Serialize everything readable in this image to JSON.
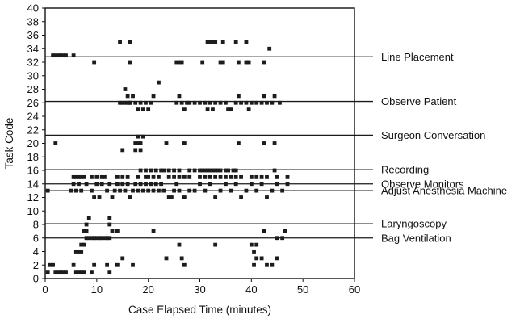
{
  "chart_data": {
    "type": "scatter",
    "xlabel": "Case Elapsed Time (minutes)",
    "ylabel": "Task Code",
    "xlim": [
      0,
      60
    ],
    "ylim": [
      0,
      40
    ],
    "xticks": [
      0,
      10,
      20,
      30,
      40,
      50,
      60
    ],
    "yticks": [
      0,
      2,
      4,
      6,
      8,
      10,
      12,
      14,
      16,
      18,
      20,
      22,
      24,
      26,
      28,
      30,
      32,
      34,
      36,
      38,
      40
    ],
    "grid": false,
    "reference_lines": [
      {
        "label": "Line Placement",
        "y": 32.8
      },
      {
        "label": "Observe Patient",
        "y": 26.2
      },
      {
        "label": "Surgeon Conversation",
        "y": 21.2
      },
      {
        "label": "Recording",
        "y": 16.1
      },
      {
        "label": "Observe Monitors",
        "y": 14.0
      },
      {
        "label": "Adjust Anesthesia Machine",
        "y": 13.0
      },
      {
        "label": "Laryngoscopy",
        "y": 8.1
      },
      {
        "label": "Bag Ventilation",
        "y": 6.0
      }
    ],
    "points": [
      [
        0.5,
        1
      ],
      [
        1,
        2
      ],
      [
        1.5,
        2
      ],
      [
        2,
        1
      ],
      [
        2.5,
        1
      ],
      [
        3,
        1
      ],
      [
        3.5,
        1
      ],
      [
        4,
        1
      ],
      [
        5.5,
        2
      ],
      [
        6,
        1
      ],
      [
        6.5,
        1
      ],
      [
        7,
        1
      ],
      [
        7.5,
        1
      ],
      [
        9,
        1
      ],
      [
        9.5,
        2
      ],
      [
        12,
        2
      ],
      [
        12.5,
        1
      ],
      [
        14,
        2
      ],
      [
        15,
        3
      ],
      [
        17,
        2
      ],
      [
        23.5,
        3
      ],
      [
        26,
        5
      ],
      [
        26.5,
        3
      ],
      [
        27,
        2
      ],
      [
        40.5,
        2
      ],
      [
        41,
        3
      ],
      [
        42,
        3
      ],
      [
        43,
        2
      ],
      [
        44,
        2
      ],
      [
        45,
        3
      ],
      [
        6,
        4
      ],
      [
        6.5,
        4
      ],
      [
        7,
        4
      ],
      [
        7,
        5
      ],
      [
        7.5,
        5
      ],
      [
        8,
        6
      ],
      [
        8.5,
        6
      ],
      [
        9,
        6
      ],
      [
        9.5,
        6
      ],
      [
        10,
        6
      ],
      [
        10.5,
        6
      ],
      [
        11,
        6
      ],
      [
        11.5,
        6
      ],
      [
        12,
        6
      ],
      [
        12.5,
        6
      ],
      [
        7.5,
        7
      ],
      [
        8,
        8
      ],
      [
        8.5,
        9
      ],
      [
        8,
        7
      ],
      [
        13,
        7
      ],
      [
        14,
        7
      ],
      [
        12.5,
        9
      ],
      [
        12.5,
        8
      ],
      [
        21,
        7
      ],
      [
        40,
        5
      ],
      [
        40.5,
        4
      ],
      [
        41,
        5
      ],
      [
        42.5,
        7
      ],
      [
        45,
        6
      ],
      [
        46,
        6
      ],
      [
        46.5,
        7
      ],
      [
        33,
        5
      ],
      [
        0.5,
        13
      ],
      [
        5,
        13
      ],
      [
        5.5,
        14
      ],
      [
        6,
        13
      ],
      [
        6.5,
        14
      ],
      [
        7,
        13
      ],
      [
        8,
        14
      ],
      [
        9,
        13
      ],
      [
        9.5,
        12
      ],
      [
        10,
        14
      ],
      [
        10.5,
        12
      ],
      [
        11,
        14
      ],
      [
        12,
        13
      ],
      [
        12.5,
        14
      ],
      [
        13,
        12
      ],
      [
        13.5,
        13
      ],
      [
        14,
        14
      ],
      [
        14.5,
        13
      ],
      [
        15,
        14
      ],
      [
        15.5,
        13
      ],
      [
        16,
        14
      ],
      [
        16.5,
        12
      ],
      [
        17,
        13
      ],
      [
        17.5,
        14
      ],
      [
        18,
        13
      ],
      [
        18.5,
        14
      ],
      [
        19,
        13
      ],
      [
        19.5,
        14
      ],
      [
        20,
        13
      ],
      [
        20.5,
        14
      ],
      [
        21,
        13
      ],
      [
        21.5,
        14
      ],
      [
        22,
        13
      ],
      [
        22.5,
        14
      ],
      [
        23,
        13
      ],
      [
        24,
        12
      ],
      [
        24.5,
        12
      ],
      [
        25,
        13
      ],
      [
        25.5,
        14
      ],
      [
        26,
        13
      ],
      [
        27,
        12
      ],
      [
        28,
        13
      ],
      [
        29,
        13
      ],
      [
        30,
        14
      ],
      [
        31,
        13
      ],
      [
        32,
        14
      ],
      [
        33,
        12
      ],
      [
        34,
        13
      ],
      [
        35,
        14
      ],
      [
        36,
        13
      ],
      [
        37,
        14
      ],
      [
        38,
        12
      ],
      [
        39,
        13
      ],
      [
        40,
        14
      ],
      [
        41,
        13
      ],
      [
        42,
        14
      ],
      [
        43,
        12
      ],
      [
        44,
        13
      ],
      [
        45,
        14
      ],
      [
        46,
        13
      ],
      [
        47,
        14
      ],
      [
        5.5,
        15
      ],
      [
        6,
        15
      ],
      [
        6.5,
        15
      ],
      [
        7,
        15
      ],
      [
        7.5,
        15
      ],
      [
        9,
        15
      ],
      [
        10,
        15
      ],
      [
        11,
        15
      ],
      [
        11.5,
        15
      ],
      [
        14,
        15
      ],
      [
        15,
        15
      ],
      [
        16,
        15
      ],
      [
        18,
        15
      ],
      [
        19.5,
        15
      ],
      [
        20,
        15
      ],
      [
        21,
        15
      ],
      [
        22,
        15
      ],
      [
        24,
        15
      ],
      [
        25,
        15
      ],
      [
        26,
        15
      ],
      [
        27,
        15
      ],
      [
        28,
        15
      ],
      [
        30,
        15
      ],
      [
        31,
        15
      ],
      [
        32,
        15
      ],
      [
        33,
        15
      ],
      [
        34,
        15
      ],
      [
        35,
        15
      ],
      [
        36,
        15
      ],
      [
        37,
        15
      ],
      [
        38,
        15
      ],
      [
        40,
        15
      ],
      [
        41,
        15
      ],
      [
        42,
        15
      ],
      [
        43,
        15
      ],
      [
        45,
        15
      ],
      [
        47,
        15
      ],
      [
        18.5,
        16
      ],
      [
        19.5,
        16
      ],
      [
        20.5,
        16
      ],
      [
        21.5,
        16
      ],
      [
        22.5,
        16
      ],
      [
        23,
        16
      ],
      [
        24,
        16
      ],
      [
        25,
        16
      ],
      [
        26,
        16
      ],
      [
        28,
        16
      ],
      [
        29,
        16
      ],
      [
        30,
        16
      ],
      [
        30.5,
        16
      ],
      [
        31,
        16
      ],
      [
        31.5,
        16
      ],
      [
        32,
        16
      ],
      [
        32.5,
        16
      ],
      [
        33,
        16
      ],
      [
        33.5,
        16
      ],
      [
        34,
        16
      ],
      [
        35,
        16
      ],
      [
        35.5,
        16
      ],
      [
        36.5,
        16
      ],
      [
        37,
        16
      ],
      [
        44.5,
        16
      ],
      [
        15,
        19
      ],
      [
        17.5,
        19
      ],
      [
        18.5,
        19
      ],
      [
        17.5,
        20
      ],
      [
        18,
        20
      ],
      [
        18.5,
        20
      ],
      [
        18,
        21
      ],
      [
        19,
        21
      ],
      [
        2,
        20
      ],
      [
        23.5,
        20
      ],
      [
        27,
        20
      ],
      [
        37.5,
        20
      ],
      [
        42.5,
        20
      ],
      [
        44.5,
        20
      ],
      [
        14.5,
        26
      ],
      [
        15,
        26
      ],
      [
        15.5,
        26
      ],
      [
        16,
        26
      ],
      [
        16.5,
        26
      ],
      [
        17,
        27
      ],
      [
        17.5,
        26
      ],
      [
        18,
        25
      ],
      [
        18.5,
        26
      ],
      [
        19,
        25
      ],
      [
        19.5,
        26
      ],
      [
        20,
        25
      ],
      [
        20.5,
        26
      ],
      [
        21,
        27
      ],
      [
        15.5,
        28
      ],
      [
        16,
        27
      ],
      [
        16.5,
        26
      ],
      [
        22,
        29
      ],
      [
        25.5,
        26
      ],
      [
        26,
        27
      ],
      [
        26.5,
        26
      ],
      [
        27,
        25
      ],
      [
        27.5,
        26
      ],
      [
        28,
        26
      ],
      [
        29,
        26
      ],
      [
        30,
        26
      ],
      [
        31,
        26
      ],
      [
        31.5,
        25
      ],
      [
        32,
        26
      ],
      [
        32.5,
        25
      ],
      [
        33,
        26
      ],
      [
        34,
        26
      ],
      [
        35,
        26
      ],
      [
        35.5,
        25
      ],
      [
        36,
        25
      ],
      [
        37,
        26
      ],
      [
        37.5,
        27
      ],
      [
        38,
        26
      ],
      [
        39,
        26
      ],
      [
        39.5,
        25
      ],
      [
        40,
        26
      ],
      [
        41,
        26
      ],
      [
        42,
        26
      ],
      [
        42.5,
        27
      ],
      [
        43,
        26
      ],
      [
        44,
        26
      ],
      [
        44.5,
        27
      ],
      [
        45.5,
        26
      ],
      [
        1.5,
        33
      ],
      [
        2,
        33
      ],
      [
        2.5,
        33
      ],
      [
        3,
        33
      ],
      [
        3.5,
        33
      ],
      [
        4,
        33
      ],
      [
        5.5,
        33
      ],
      [
        9.5,
        32
      ],
      [
        16.5,
        32
      ],
      [
        25.5,
        32
      ],
      [
        26,
        32
      ],
      [
        26.5,
        32
      ],
      [
        30.5,
        32
      ],
      [
        34,
        32
      ],
      [
        34.5,
        32
      ],
      [
        37.5,
        32
      ],
      [
        39,
        32
      ],
      [
        39.5,
        32
      ],
      [
        42.5,
        32
      ],
      [
        43.5,
        34
      ],
      [
        14.5,
        35
      ],
      [
        16.5,
        35
      ],
      [
        31.5,
        35
      ],
      [
        32,
        35
      ],
      [
        32.5,
        35
      ],
      [
        33,
        35
      ],
      [
        34.5,
        35
      ],
      [
        37,
        35
      ],
      [
        39,
        35
      ]
    ]
  }
}
